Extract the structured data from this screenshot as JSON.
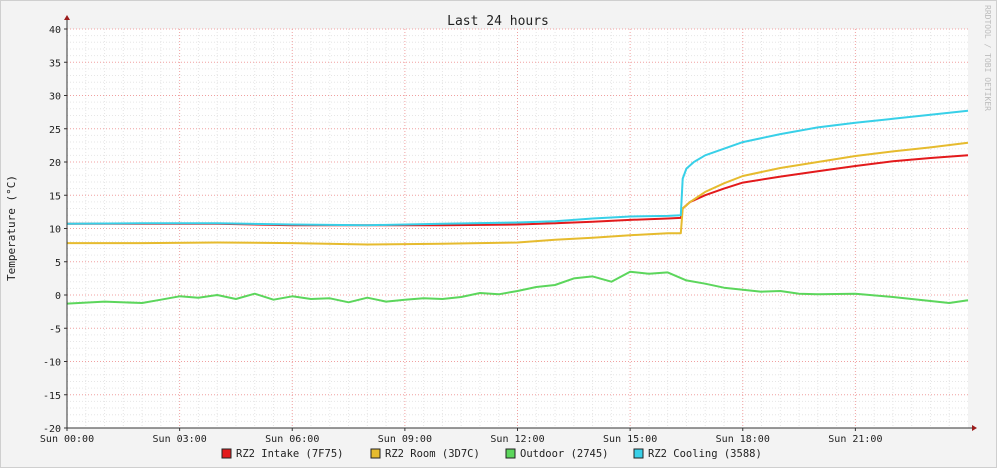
{
  "chart_data": {
    "type": "line",
    "title": "Last 24 hours",
    "ylabel": "Temperature (°C)",
    "watermark": "RRDTOOL / TOBI OETIKER",
    "ylim": [
      -20,
      40
    ],
    "y_ticks": [
      40,
      35,
      30,
      25,
      20,
      15,
      10,
      5,
      0,
      -5,
      -10,
      -15,
      -20
    ],
    "y_tick_labels": [
      "40",
      "35",
      "30",
      "25",
      "20",
      "15",
      "10",
      "5",
      "0",
      "-5",
      "-10",
      "-15",
      "-20"
    ],
    "x_range_hours": [
      0,
      24
    ],
    "x_ticks": [
      0,
      3,
      6,
      9,
      12,
      15,
      18,
      21
    ],
    "x_tick_labels": [
      "Sun 00:00",
      "Sun 03:00",
      "Sun 06:00",
      "Sun 09:00",
      "Sun 12:00",
      "Sun 15:00",
      "Sun 18:00",
      "Sun 21:00"
    ],
    "grid": true,
    "legend_position": "bottom",
    "series": [
      {
        "name": "RZ2 Intake (7F75)",
        "color": "#e31a1c",
        "x": [
          0,
          2,
          4,
          6,
          8,
          10,
          12,
          13,
          14,
          15,
          16,
          16.35,
          16.4,
          16.6,
          17,
          17.5,
          18,
          19,
          20,
          21,
          22,
          23,
          24
        ],
        "y": [
          10.7,
          10.7,
          10.7,
          10.5,
          10.5,
          10.5,
          10.6,
          10.8,
          11.0,
          11.3,
          11.5,
          11.6,
          13.0,
          14.0,
          15.0,
          16.0,
          16.9,
          17.8,
          18.6,
          19.4,
          20.1,
          20.6,
          21.0
        ]
      },
      {
        "name": "RZ2 Room (3D7C)",
        "color": "#e6bb2e",
        "x": [
          0,
          2,
          4,
          6,
          8,
          10,
          12,
          13,
          14,
          15,
          16,
          16.35,
          16.4,
          16.6,
          17,
          17.5,
          18,
          19,
          20,
          21,
          22,
          23,
          24
        ],
        "y": [
          7.8,
          7.8,
          7.9,
          7.8,
          7.6,
          7.7,
          7.9,
          8.3,
          8.6,
          9.0,
          9.3,
          9.3,
          13.0,
          14.0,
          15.5,
          16.8,
          17.9,
          19.1,
          20.0,
          20.9,
          21.6,
          22.2,
          22.9
        ]
      },
      {
        "name": "Outdoor (2745)",
        "color": "#5cd65c",
        "x": [
          0,
          1,
          2,
          2.5,
          3,
          3.5,
          4,
          4.5,
          5,
          5.5,
          6,
          6.5,
          7,
          7.5,
          8,
          8.5,
          9,
          9.5,
          10,
          10.5,
          11,
          11.5,
          12,
          12.5,
          13,
          13.5,
          14,
          14.5,
          15,
          15.5,
          16,
          16.5,
          17,
          17.5,
          18,
          18.5,
          19,
          19.5,
          20,
          21,
          22,
          23,
          23.5,
          24
        ],
        "y": [
          -1.3,
          -1.0,
          -1.2,
          -0.7,
          -0.2,
          -0.4,
          0.0,
          -0.6,
          0.2,
          -0.7,
          -0.2,
          -0.6,
          -0.5,
          -1.1,
          -0.4,
          -1.0,
          -0.7,
          -0.5,
          -0.6,
          -0.3,
          0.3,
          0.1,
          0.6,
          1.2,
          1.5,
          2.5,
          2.8,
          2.0,
          3.5,
          3.2,
          3.4,
          2.2,
          1.7,
          1.1,
          0.8,
          0.5,
          0.6,
          0.2,
          0.1,
          0.2,
          -0.3,
          -0.9,
          -1.2,
          -0.8
        ]
      },
      {
        "name": "RZ2 Cooling (3588)",
        "color": "#38d0e8",
        "x": [
          0,
          2,
          4,
          6,
          8,
          10,
          12,
          13,
          14,
          15,
          16,
          16.35,
          16.4,
          16.5,
          16.7,
          17,
          17.5,
          18,
          19,
          20,
          21,
          22,
          23,
          24
        ],
        "y": [
          10.7,
          10.8,
          10.8,
          10.6,
          10.5,
          10.7,
          10.9,
          11.1,
          11.5,
          11.8,
          11.9,
          12.0,
          17.5,
          19.0,
          20.0,
          21.0,
          22.0,
          23.0,
          24.2,
          25.2,
          25.9,
          26.5,
          27.1,
          27.7
        ]
      }
    ]
  }
}
